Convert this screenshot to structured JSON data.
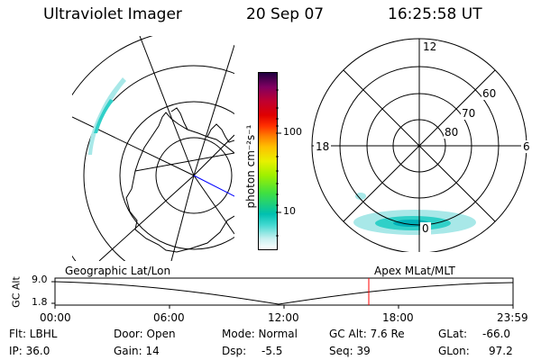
{
  "header": {
    "instrument": "Ultraviolet Imager",
    "date": "20 Sep 07",
    "time": "16:25:58 UT"
  },
  "colorbar": {
    "unit_label": "photon cm⁻²s⁻¹",
    "ticks": [
      "100",
      "10"
    ],
    "scale": "log"
  },
  "polar_plot": {
    "labels": {
      "top": "12",
      "left": "18",
      "right": "6",
      "bottom": "0"
    },
    "rings": [
      "60",
      "70",
      "80"
    ]
  },
  "timeline": {
    "left_label": "Geographic Lat/Lon",
    "right_label": "Apex MLat/MLT",
    "axis_label": "GC Alt",
    "y_ticks": [
      "9.0",
      "1.8"
    ],
    "x_ticks": [
      "00:00",
      "06:00",
      "12:00",
      "18:00",
      "23:59"
    ],
    "current_time_marker_color": "#ff0000"
  },
  "info": {
    "flt": "Flt: LBHL",
    "ip": "IP: 36.0",
    "door": "Door: Open",
    "gain": "Gain: 14",
    "mode": "Mode: Normal",
    "dsp_label": "Dsp:",
    "dsp_value": "-5.5",
    "gcalt": "GC Alt: 7.6 Re",
    "seq": "Seq: 39",
    "glat_label": "GLat:",
    "glat_value": "-66.0",
    "glon_label": "GLon:",
    "glon_value": "97.2"
  },
  "colors": {
    "aurora_low": "#a8e8e8",
    "aurora_mid": "#30d0c8",
    "aurora_high": "#00b0b8",
    "marker": "#ff0000",
    "meridian": "#0000ff"
  }
}
